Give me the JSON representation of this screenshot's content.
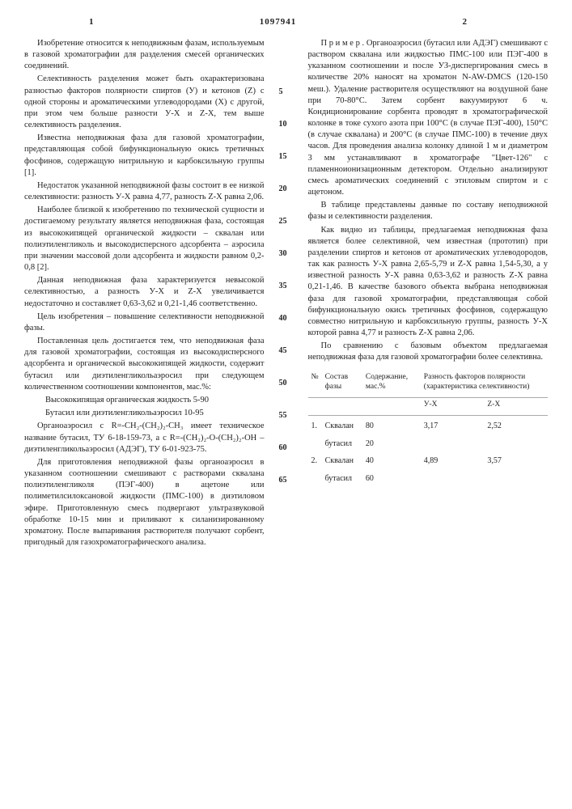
{
  "header": {
    "page_left": "1",
    "doc_number": "1097941",
    "page_right": "2"
  },
  "linenums": [
    "5",
    "10",
    "15",
    "20",
    "25",
    "30",
    "35",
    "40",
    "45",
    "50",
    "55",
    "60",
    "65"
  ],
  "left": {
    "p1": "Изобретение относится к неподвижным фазам, используемым в газовой хроматографии для разделения смесей органических соединений.",
    "p2": "Селективность разделения может быть охарактеризована разностью факторов полярности спиртов (У) и кетонов (Z) с одной стороны и ароматическими углеводородами (X) с другой, при этом чем больше разности У-X и Z-X, тем выше селективность разделения.",
    "p3": "Известна неподвижная фаза для газовой хроматографии, представляющая собой бифункциональную окись третичных фосфинов, содержащую нитрильную и карбоксильную группы [1].",
    "p4": "Недостаток указанной неподвижной фазы состоит в ее низкой селективности: разность У-X равна 4,77, разность Z-X равна 2,06.",
    "p5": "Наиболее близкой к изобретению по технической сущности и достигаемому результату является неподвижная фаза, состоящая из высококипящей органической жидкости – сквалан или полиэтиленгликоль и высокодисперсного адсорбента – аэросила при значении массовой доли адсорбента и жидкости равном 0,2-0,8 [2].",
    "p6": "Данная неподвижная фаза характеризуется невысокой селективностью, а разность У-X и Z-X увеличивается недостаточно и составляет 0,63-3,62 и 0,21-1,46 соответственно.",
    "p7": "Цель изобретения – повышение селективности неподвижной фазы.",
    "p8": "Поставленная цель достигается тем, что неподвижная фаза для газовой хроматографии, состоящая из высокодисперсного адсорбента и органической высококипящей жидкости, содержит бутасил или диэтиленгликольаэросил при следующем количественном соотношении компонентов, мас.%:",
    "p9": "Высококипящая органическая жидкость 5-90",
    "p10": "Бутасил или диэтиленгликольаэросил 10-95",
    "p11": "Органоаэросил с R=-CH₂-(CH₂)₂-CH₃ имеет техническое название бутасил, ТУ 6-18-159-73, а с R=-(CH₂)₂-O-(CH₂)₂-OH – диэтиленгликольаэросил (АДЭГ), ТУ 6-01-923-75.",
    "p12": "Для приготовления неподвижной фазы органоаэросил в указанном соотношении смешивают с растворами сквалана полиэтиленгликоля (ПЭГ-400) в ацетоне или полиметилсилоксановой жидкости (ПМС-100) в диэтиловом эфире. Приготовленную смесь подвергают ультразвуковой обработке 10-15 мин и приливают к силанизированному хроматону. После выпаривания растворителя получают сорбент, пригодный для газохроматографического анализа."
  },
  "right": {
    "p1": "П р и м е р . Органоаэросил (бутасил или АДЭГ) смешивают с раствором сквалана или жидкостью ПМС-100 или ПЭГ-400 в указанном соотношении и после УЗ-диспергирования смесь в количестве 20% наносят на хроматон N-AW-DMCS (120-150 меш.). Удаление растворителя осуществляют на воздушной бане при 70-80°С. Затем сорбент вакуумируют 6 ч. Кондиционирование сорбента проводят в хроматографической колонке в токе сухого азота при 100°С (в случае ПЭГ-400), 150°С (в случае сквалана) и 200°С (в случае ПМС-100) в течение двух часов. Для проведения анализа колонку длиной 1 м и диаметром 3 мм устанавливают в хроматографе \"Цвет-126\" с пламенноионизационным детектором. Отдельно анализируют смесь ароматических соединений с этиловым спиртом и с ацетоном.",
    "p2": "В таблице представлены данные по составу неподвижной фазы и селективности разделения.",
    "p3": "Как видно из таблицы, предлагаемая неподвижная фаза является более селективной, чем известная (прототип) при разделении спиртов и кетонов от ароматических углеводородов, так как разность У-X равна 2,65-5,79 и Z-X равна 1,54-5,30, а у известной разность У-X равна 0,63-3,62 и разность Z-X равна 0,21-1,46. В качестве базового объекта выбрана неподвижная фаза для газовой хроматографии, представляющая собой бифункциональную окись третичных фосфинов, содержащую совместно нитрильную и карбоксильную группы, разность У-X которой равна 4,77 и разность Z-X равна 2,06.",
    "p4": "По сравнению с базовым объектом предлагаемая неподвижная фаза для газовой хроматографии более селективна."
  },
  "table": {
    "headers": {
      "num": "№",
      "comp": "Состав фазы",
      "cont": "Содержание, мас.%",
      "diff": "Разность факторов полярности (характеристика селективности)",
      "yx": "У-X",
      "zx": "Z-X"
    },
    "rows": [
      {
        "n": "1.",
        "a": "Сквалан",
        "va": "80",
        "b": "бутасил",
        "vb": "20",
        "yx": "3,17",
        "zx": "2,52"
      },
      {
        "n": "2.",
        "a": "Сквалан",
        "va": "40",
        "b": "бутасил",
        "vb": "60",
        "yx": "4,89",
        "zx": "3,57"
      }
    ]
  }
}
